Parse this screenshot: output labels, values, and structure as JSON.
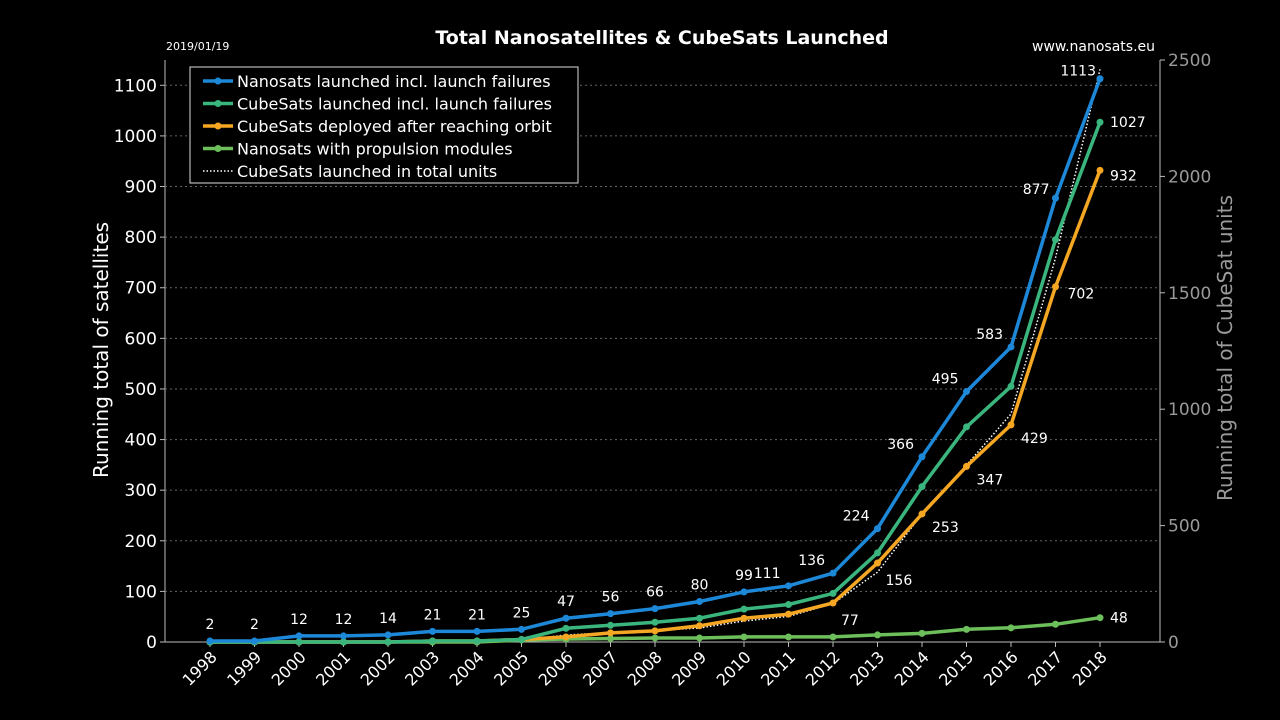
{
  "header": {
    "title": "Total Nanosatellites & CubeSats Launched",
    "date": "2019/01/19",
    "source": "www.nanosats.eu"
  },
  "chart_data": {
    "type": "line",
    "title": "Total Nanosatellites & CubeSats Launched",
    "xlabel": "",
    "ylabel": "Running total of satellites",
    "y2label": "Running total of CubeSat units",
    "ylim": [
      0,
      1150
    ],
    "y2lim": [
      0,
      2500
    ],
    "yticks": [
      0,
      100,
      200,
      300,
      400,
      500,
      600,
      700,
      800,
      900,
      1000,
      1100
    ],
    "y2ticks": [
      0,
      500,
      1000,
      1500,
      2000,
      2500
    ],
    "categories": [
      "1998",
      "1999",
      "2000",
      "2001",
      "2002",
      "2003",
      "2004",
      "2005",
      "2006",
      "2007",
      "2008",
      "2009",
      "2010",
      "2011",
      "2012",
      "2013",
      "2014",
      "2015",
      "2016",
      "2017",
      "2018"
    ],
    "grid": true,
    "legend_position": "top-left",
    "series": [
      {
        "key": "nanosats",
        "name": "Nanosats launched incl. launch failures",
        "color": "#1e88d8",
        "axis": "left",
        "style": "solid",
        "values": [
          2,
          2,
          12,
          12,
          14,
          21,
          21,
          25,
          47,
          56,
          66,
          80,
          99,
          111,
          136,
          224,
          366,
          495,
          583,
          877,
          1113
        ],
        "labels": [
          "2",
          "2",
          "12",
          "12",
          "14",
          "21",
          "21",
          "25",
          "47",
          "56",
          "66",
          "80",
          "99",
          "111",
          "136",
          "224",
          "366",
          "495",
          "583",
          "877",
          "1113"
        ]
      },
      {
        "key": "cubesats",
        "name": "CubeSats launched incl. launch failures",
        "color": "#3bb57e",
        "axis": "left",
        "style": "solid",
        "values": [
          0,
          0,
          0,
          0,
          0,
          2,
          2,
          5,
          27,
          33,
          39,
          47,
          65,
          74,
          96,
          176,
          307,
          425,
          505,
          795,
          1027
        ],
        "labels": [
          "",
          "",
          "",
          "",
          "",
          "",
          "",
          "",
          "",
          "",
          "",
          "",
          "",
          "",
          "",
          "",
          "",
          "",
          "",
          "",
          "1027"
        ]
      },
      {
        "key": "deployed",
        "name": "CubeSats deployed after reaching orbit",
        "color": "#f5a623",
        "axis": "left",
        "style": "solid",
        "values": [
          0,
          0,
          0,
          0,
          0,
          2,
          2,
          5,
          10,
          18,
          22,
          32,
          47,
          55,
          77,
          156,
          253,
          347,
          429,
          702,
          932
        ],
        "labels": [
          "",
          "",
          "",
          "",
          "",
          "",
          "",
          "",
          "",
          "",
          "",
          "",
          "",
          "",
          "77",
          "156",
          "253",
          "347",
          "429",
          "702",
          "932"
        ]
      },
      {
        "key": "propulsion",
        "name": "Nanosats with propulsion modules",
        "color": "#6cbf5a",
        "axis": "left",
        "style": "solid",
        "values": [
          0,
          0,
          0,
          0,
          0,
          0,
          0,
          4,
          6,
          7,
          8,
          8,
          10,
          10,
          10,
          14,
          17,
          25,
          28,
          35,
          48
        ],
        "labels": [
          "",
          "",
          "",
          "",
          "",
          "",
          "",
          "",
          "",
          "",
          "",
          "",
          "",
          "",
          "",
          "",
          "",
          "",
          "",
          "",
          "48"
        ]
      },
      {
        "key": "units",
        "name": "CubeSats launched in total units",
        "color": "#ffffff",
        "axis": "right",
        "style": "dotted",
        "values": [
          0,
          0,
          0,
          0,
          0,
          4,
          4,
          8,
          30,
          40,
          50,
          60,
          90,
          110,
          165,
          300,
          550,
          760,
          980,
          1650,
          2460
        ],
        "labels": []
      }
    ]
  }
}
